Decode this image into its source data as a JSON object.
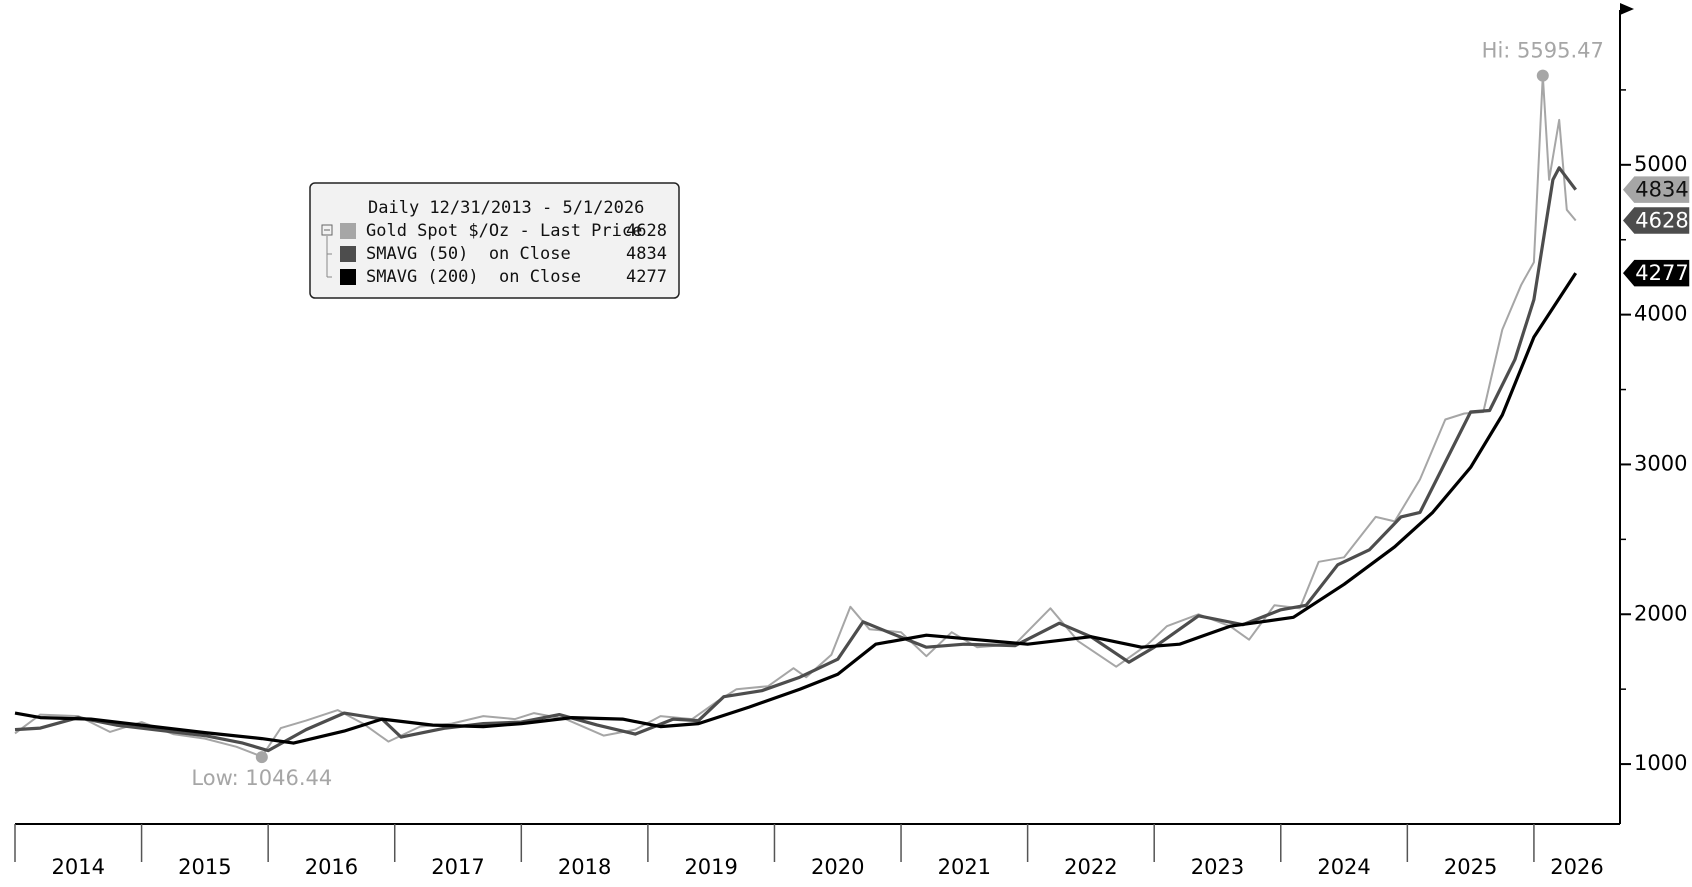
{
  "chart_data": {
    "type": "line",
    "legend_title": "Daily 12/31/2013 - 5/1/2026",
    "xlim": [
      2014,
      2026.68
    ],
    "xticks": [
      2014,
      2015,
      2016,
      2017,
      2018,
      2019,
      2020,
      2021,
      2022,
      2023,
      2024,
      2025,
      2026
    ],
    "ylim": [
      600,
      6000
    ],
    "yticks": [
      1000,
      2000,
      3000,
      4000,
      5000
    ],
    "yminorticks": [
      1500,
      2500,
      3500,
      4500,
      5500
    ],
    "series": [
      {
        "name": "Gold Spot $/Oz - Last Price",
        "color": "#a6a6a6",
        "x": [
          2014.0,
          2014.2,
          2014.5,
          2014.75,
          2015.0,
          2015.25,
          2015.5,
          2015.75,
          2015.95,
          2016.1,
          2016.3,
          2016.55,
          2016.75,
          2016.95,
          2017.2,
          2017.45,
          2017.7,
          2017.95,
          2018.1,
          2018.35,
          2018.65,
          2018.9,
          2019.1,
          2019.35,
          2019.55,
          2019.7,
          2019.95,
          2020.15,
          2020.25,
          2020.45,
          2020.6,
          2020.75,
          2021.0,
          2021.2,
          2021.4,
          2021.6,
          2021.9,
          2022.18,
          2022.4,
          2022.7,
          2022.95,
          2023.1,
          2023.35,
          2023.6,
          2023.75,
          2023.95,
          2024.15,
          2024.3,
          2024.5,
          2024.75,
          2024.9,
          2025.1,
          2025.3,
          2025.45,
          2025.6,
          2025.75,
          2025.9,
          2026.0,
          2026.07,
          2026.12,
          2026.2,
          2026.26,
          2026.33
        ],
        "values": [
          1205,
          1330,
          1320,
          1215,
          1280,
          1200,
          1170,
          1115,
          1050,
          1240,
          1290,
          1360,
          1270,
          1150,
          1250,
          1270,
          1320,
          1300,
          1340,
          1300,
          1190,
          1230,
          1320,
          1300,
          1420,
          1500,
          1520,
          1640,
          1580,
          1730,
          2050,
          1900,
          1880,
          1720,
          1880,
          1780,
          1800,
          2040,
          1820,
          1650,
          1800,
          1920,
          2000,
          1920,
          1830,
          2060,
          2040,
          2350,
          2380,
          2650,
          2620,
          2900,
          3300,
          3340,
          3350,
          3900,
          4200,
          4350,
          5595.47,
          4900,
          5300,
          4700,
          4628
        ]
      },
      {
        "name": "SMAVG (50)  on Close",
        "color": "#4d4d4d",
        "x": [
          2014.0,
          2014.2,
          2014.5,
          2014.8,
          2015.1,
          2015.5,
          2015.8,
          2016.0,
          2016.3,
          2016.6,
          2016.9,
          2017.05,
          2017.4,
          2017.7,
          2018.0,
          2018.3,
          2018.6,
          2018.9,
          2019.2,
          2019.4,
          2019.6,
          2019.9,
          2020.2,
          2020.5,
          2020.7,
          2020.9,
          2021.2,
          2021.5,
          2021.9,
          2022.25,
          2022.5,
          2022.8,
          2023.0,
          2023.35,
          2023.7,
          2024.0,
          2024.2,
          2024.45,
          2024.7,
          2024.95,
          2025.1,
          2025.35,
          2025.5,
          2025.65,
          2025.85,
          2026.0,
          2026.15,
          2026.2,
          2026.33
        ],
        "values": [
          1230,
          1240,
          1310,
          1260,
          1230,
          1190,
          1140,
          1090,
          1230,
          1340,
          1300,
          1180,
          1240,
          1270,
          1280,
          1330,
          1260,
          1200,
          1300,
          1290,
          1450,
          1490,
          1580,
          1700,
          1950,
          1880,
          1780,
          1800,
          1790,
          1940,
          1850,
          1680,
          1780,
          1990,
          1930,
          2030,
          2060,
          2330,
          2430,
          2650,
          2680,
          3100,
          3350,
          3360,
          3700,
          4100,
          4900,
          4980,
          4834
        ]
      },
      {
        "name": "SMAVG (200)  on Close",
        "color": "#000000",
        "x": [
          2014.0,
          2014.2,
          2014.6,
          2015.0,
          2015.5,
          2015.95,
          2016.2,
          2016.6,
          2016.9,
          2017.3,
          2017.7,
          2018.0,
          2018.4,
          2018.8,
          2019.1,
          2019.4,
          2019.8,
          2020.2,
          2020.5,
          2020.8,
          2021.2,
          2021.6,
          2022.0,
          2022.5,
          2022.9,
          2023.2,
          2023.6,
          2024.1,
          2024.5,
          2024.9,
          2025.2,
          2025.5,
          2025.75,
          2026.0,
          2026.33
        ],
        "values": [
          1340,
          1310,
          1300,
          1260,
          1210,
          1170,
          1140,
          1220,
          1300,
          1260,
          1250,
          1270,
          1310,
          1300,
          1250,
          1270,
          1380,
          1500,
          1600,
          1800,
          1860,
          1830,
          1800,
          1850,
          1780,
          1800,
          1920,
          1980,
          2200,
          2450,
          2680,
          2980,
          3330,
          3850,
          4277
        ]
      }
    ],
    "annotations": [
      {
        "text": "Hi:",
        "x": 2026.07,
        "value": 5595.47
      },
      {
        "text": "Low:",
        "x": 2015.95,
        "value": 1046.44
      }
    ]
  }
}
